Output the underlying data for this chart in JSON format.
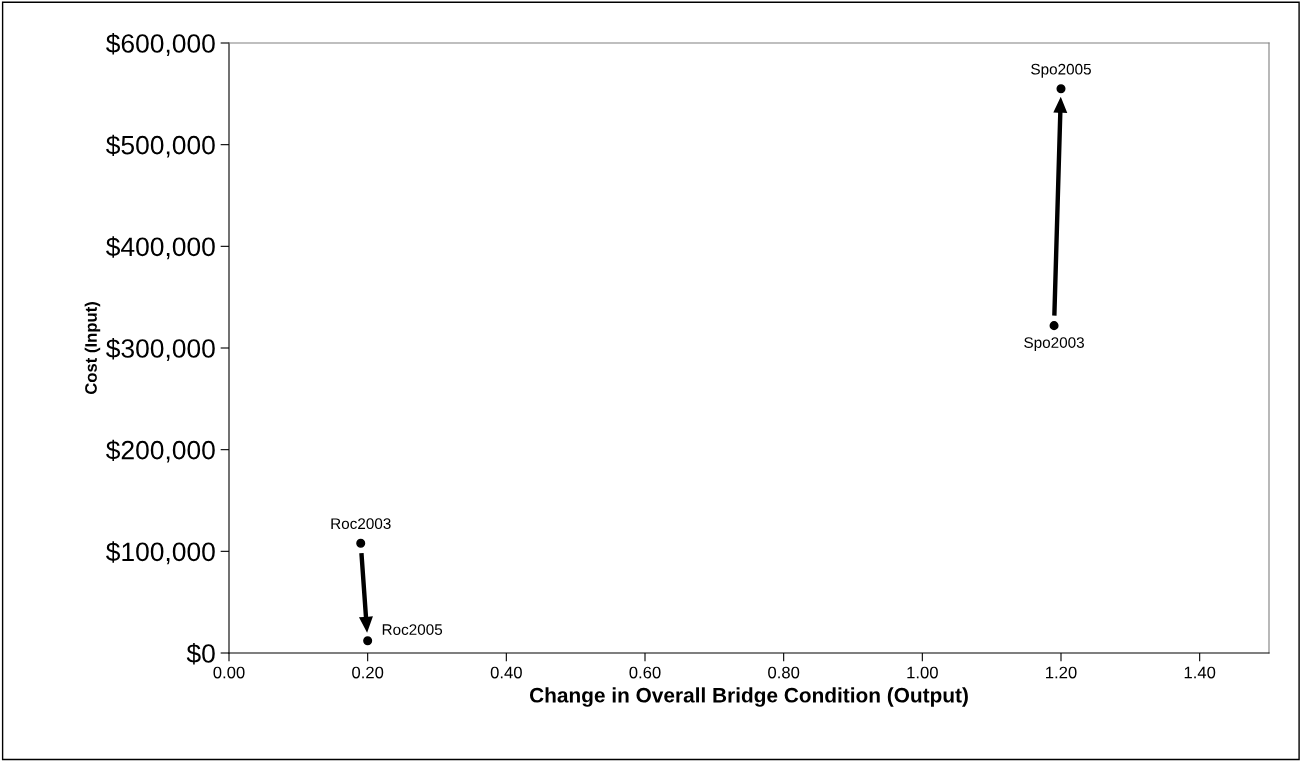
{
  "chart_data": {
    "type": "scatter",
    "xlabel": "Change in Overall Bridge Condition (Output)",
    "ylabel": "Cost (Input)",
    "series": [
      {
        "color": "#000000",
        "x": [
          0.19,
          0.2
        ],
        "values": [
          108000,
          12000
        ]
      },
      {
        "color": "#000000",
        "x": [
          1.19,
          1.2
        ],
        "values": [
          322000,
          555000
        ]
      }
    ],
    "annotations": [
      {
        "text": "Roc2003",
        "x": 0.19,
        "y": 108000
      },
      {
        "text": "Roc2005",
        "x": 0.2,
        "y": 12000
      },
      {
        "text": "Spo2003",
        "x": 1.19,
        "y": 322000
      },
      {
        "text": "Spo2005",
        "x": 1.2,
        "y": 555000
      }
    ],
    "xlim": [
      0,
      1.5
    ],
    "xticks": [
      {
        "value": 0,
        "label": "0.00"
      },
      {
        "value": 0.2,
        "label": "0.20"
      },
      {
        "value": 0.4,
        "label": "0.40"
      },
      {
        "value": 0.6,
        "label": "0.60"
      },
      {
        "value": 0.8,
        "label": "0.80"
      },
      {
        "value": 1.0,
        "label": "1.00"
      },
      {
        "value": 1.2,
        "label": "1.20"
      },
      {
        "value": 1.4,
        "label": "1.40"
      }
    ],
    "ylim": [
      0,
      600000
    ],
    "yticks": [
      {
        "value": 0,
        "label": "$0"
      },
      {
        "value": 100000,
        "label": "$100,000"
      },
      {
        "value": 200000,
        "label": "$200,000"
      },
      {
        "value": 300000,
        "label": "$300,000"
      },
      {
        "value": 400000,
        "label": "$400,000"
      },
      {
        "value": 500000,
        "label": "$500,000"
      },
      {
        "value": 600000,
        "label": "$600,000"
      }
    ],
    "marker": "circle",
    "grid": false,
    "legend": false
  }
}
